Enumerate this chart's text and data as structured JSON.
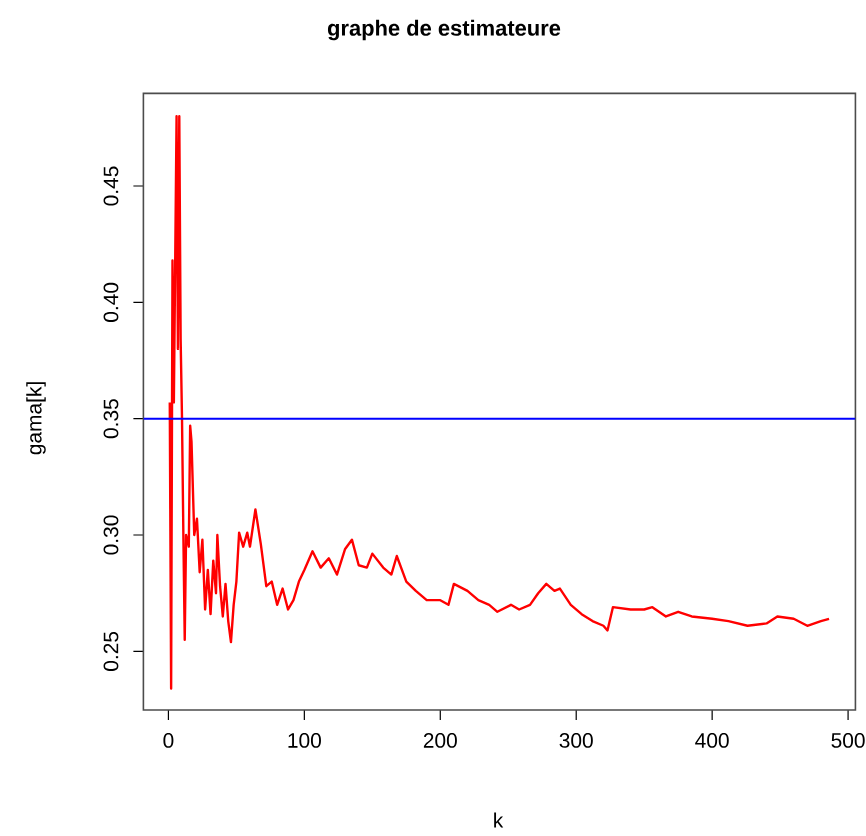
{
  "chart_data": {
    "type": "line",
    "title": "graphe de estimateure",
    "xlabel": "k",
    "ylabel": "gama[k]",
    "xlim": [
      -18.4,
      505.4
    ],
    "ylim": [
      0.2248,
      0.4898
    ],
    "xticks": [
      0,
      100,
      200,
      300,
      400,
      500
    ],
    "yticks": [
      0.25,
      {
        "value": 0.3,
        "label": "0.30"
      },
      0.35,
      {
        "value": 0.4,
        "label": "0.40"
      },
      0.45
    ],
    "series": [
      {
        "color": "#ff0000",
        "x": [
          1,
          2,
          3,
          4,
          5,
          6,
          7,
          8,
          9,
          10,
          11,
          12,
          13,
          15,
          16,
          17,
          19,
          21,
          23,
          25,
          27,
          29,
          31,
          33,
          35,
          36,
          38,
          40,
          42,
          44,
          46,
          48,
          50,
          52,
          55,
          58,
          60,
          62,
          64,
          68,
          72,
          76,
          80,
          84,
          88,
          92,
          96,
          100,
          106,
          112,
          118,
          124,
          130,
          135,
          140,
          146,
          150,
          158,
          164,
          168,
          175,
          182,
          190,
          200,
          206,
          210,
          220,
          228,
          236,
          242,
          252,
          258,
          266,
          272,
          278,
          284,
          288,
          296,
          304,
          312,
          320,
          323,
          327,
          340,
          350,
          356,
          366,
          375,
          385,
          400,
          412,
          426,
          440,
          448,
          460,
          470,
          480,
          486
        ],
        "values": [
          0.357,
          0.234,
          0.418,
          0.357,
          0.418,
          0.48,
          0.38,
          0.48,
          0.384,
          0.35,
          0.3,
          0.255,
          0.3,
          0.295,
          0.347,
          0.34,
          0.3,
          0.307,
          0.284,
          0.298,
          0.268,
          0.285,
          0.266,
          0.289,
          0.275,
          0.3,
          0.278,
          0.265,
          0.279,
          0.263,
          0.254,
          0.27,
          0.28,
          0.301,
          0.295,
          0.301,
          0.295,
          0.303,
          0.311,
          0.296,
          0.278,
          0.28,
          0.27,
          0.277,
          0.268,
          0.272,
          0.28,
          0.285,
          0.293,
          0.286,
          0.29,
          0.283,
          0.294,
          0.298,
          0.287,
          0.286,
          0.292,
          0.286,
          0.283,
          0.291,
          0.28,
          0.276,
          0.272,
          0.272,
          0.27,
          0.279,
          0.276,
          0.272,
          0.27,
          0.267,
          0.27,
          0.268,
          0.27,
          0.275,
          0.279,
          0.276,
          0.277,
          0.27,
          0.266,
          0.263,
          0.261,
          0.259,
          0.269,
          0.268,
          0.268,
          0.269,
          0.265,
          0.267,
          0.265,
          0.264,
          0.263,
          0.261,
          0.262,
          0.265,
          0.264,
          0.261,
          0.263,
          0.264
        ]
      }
    ],
    "ref_lines": [
      {
        "axis": "y",
        "value": 0.35,
        "color": "#0000ff"
      }
    ]
  }
}
